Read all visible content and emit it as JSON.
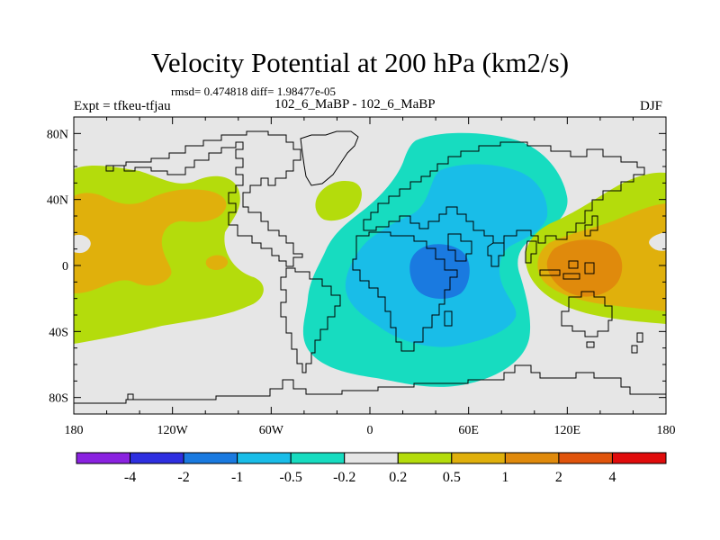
{
  "title": "Velocity Potential at 200 hPa (km2/s)",
  "stats_line": "rmsd= 0.474818  diff= 1.98477e-05",
  "left_label": "Expt = tfkeu-tfjau",
  "center_label": "102_6_MaBP - 102_6_MaBP",
  "right_label": "DJF",
  "map": {
    "lon_range": [
      -180,
      180
    ],
    "lat_range": [
      -90,
      90
    ],
    "lon_ticks": [
      {
        "value": -180,
        "label": "180"
      },
      {
        "value": -120,
        "label": "120W"
      },
      {
        "value": -60,
        "label": "60W"
      },
      {
        "value": 0,
        "label": "0"
      },
      {
        "value": 60,
        "label": "60E"
      },
      {
        "value": 120,
        "label": "120E"
      },
      {
        "value": 180,
        "label": "180"
      }
    ],
    "lat_ticks": [
      {
        "value": 80,
        "label": "80N"
      },
      {
        "value": 40,
        "label": "40N"
      },
      {
        "value": 0,
        "label": "0"
      },
      {
        "value": -40,
        "label": "40S"
      },
      {
        "value": -80,
        "label": "80S"
      }
    ],
    "background_color": "#e6e6e6"
  },
  "colorbar": {
    "colors": [
      "#8a22e0",
      "#2e2fe0",
      "#1a7ae0",
      "#19bde8",
      "#17dcc0",
      "#e6e6e6",
      "#b4dc0c",
      "#e0b00c",
      "#e08a0c",
      "#e0540c",
      "#e00c0c"
    ],
    "labels": [
      "-4",
      "-2",
      "-1",
      "-0.5",
      "-0.2",
      "0.2",
      "0.5",
      "1",
      "2",
      "4"
    ]
  }
}
